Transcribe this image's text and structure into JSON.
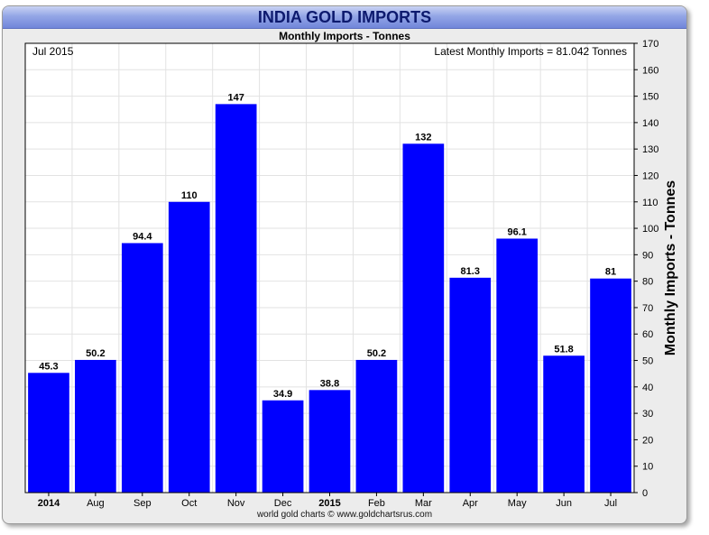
{
  "title": "INDIA GOLD IMPORTS",
  "subtitle": "Monthly Imports - Tonnes",
  "date_label": "Jul 2015",
  "latest_label": "Latest Monthly Imports = 81.042 Tonnes",
  "footer": "world gold charts © www.goldchartsrus.com",
  "colors": {
    "bar": "#0000ff",
    "title_text": "#0d1a6e",
    "grid": "#e2e2e2"
  },
  "chart_data": {
    "type": "bar",
    "categories": [
      "2014",
      "Aug",
      "Sep",
      "Oct",
      "Nov",
      "Dec",
      "2015",
      "Feb",
      "Mar",
      "Apr",
      "May",
      "Jun",
      "Jul"
    ],
    "bold_categories": [
      "2014",
      "2015"
    ],
    "values": [
      45.3,
      50.2,
      94.4,
      110,
      147,
      34.9,
      38.8,
      50.2,
      132,
      81.3,
      96.1,
      51.8,
      81
    ],
    "data_labels": [
      "45.3",
      "50.2",
      "94.4",
      "110",
      "147",
      "34.9",
      "38.8",
      "50.2",
      "132",
      "81.3",
      "96.1",
      "51.8",
      "81"
    ],
    "title": "INDIA GOLD IMPORTS",
    "subtitle": "Monthly Imports - Tonnes",
    "xlabel": "",
    "ylabel": "Monthly Imports - Tonnes",
    "ylim": [
      0,
      170
    ],
    "yticks": [
      0,
      10,
      20,
      30,
      40,
      50,
      60,
      70,
      80,
      90,
      100,
      110,
      120,
      130,
      140,
      150,
      160,
      170
    ],
    "y_axis_side": "right",
    "grid": true,
    "legend": "none"
  }
}
